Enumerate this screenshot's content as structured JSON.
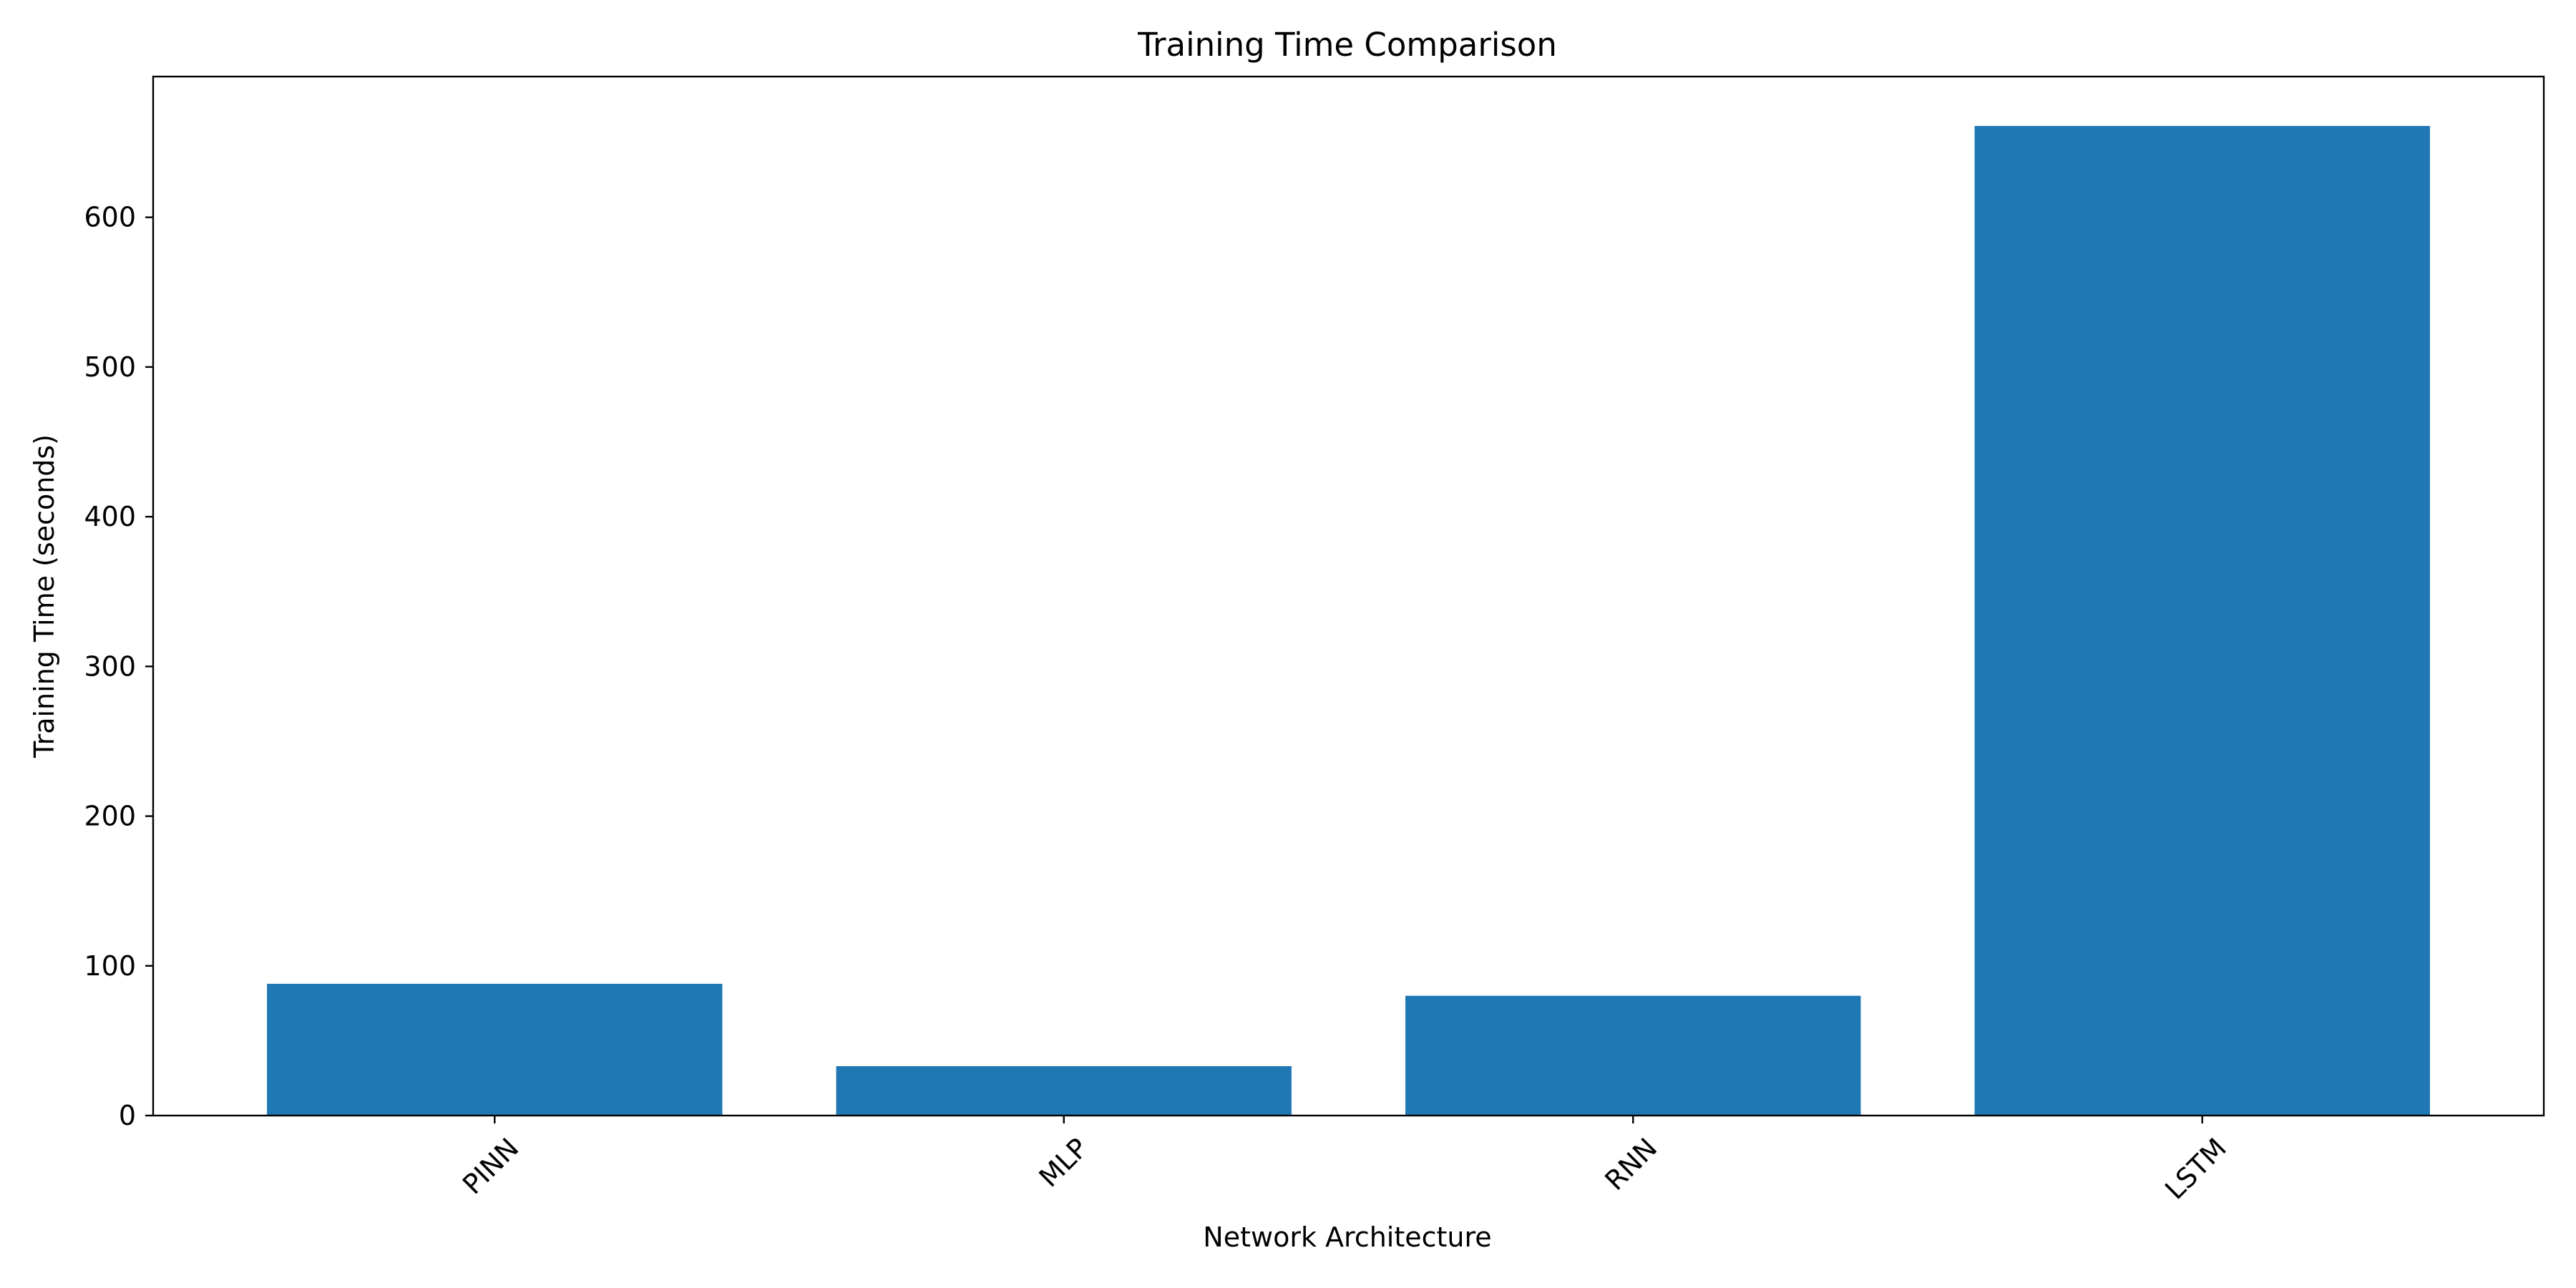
{
  "chart_data": {
    "type": "bar",
    "title": "Training Time Comparison",
    "xlabel": "Network Architecture",
    "ylabel": "Training Time (seconds)",
    "categories": [
      "PINN",
      "MLP",
      "RNN",
      "LSTM"
    ],
    "values": [
      88,
      33,
      80,
      661
    ],
    "ylim": [
      0,
      694
    ],
    "yticks": [
      0,
      100,
      200,
      300,
      400,
      500,
      600
    ],
    "xtick_rotation_deg": 45,
    "grid": false,
    "legend": "none",
    "bar_color": "#1f77b4"
  }
}
